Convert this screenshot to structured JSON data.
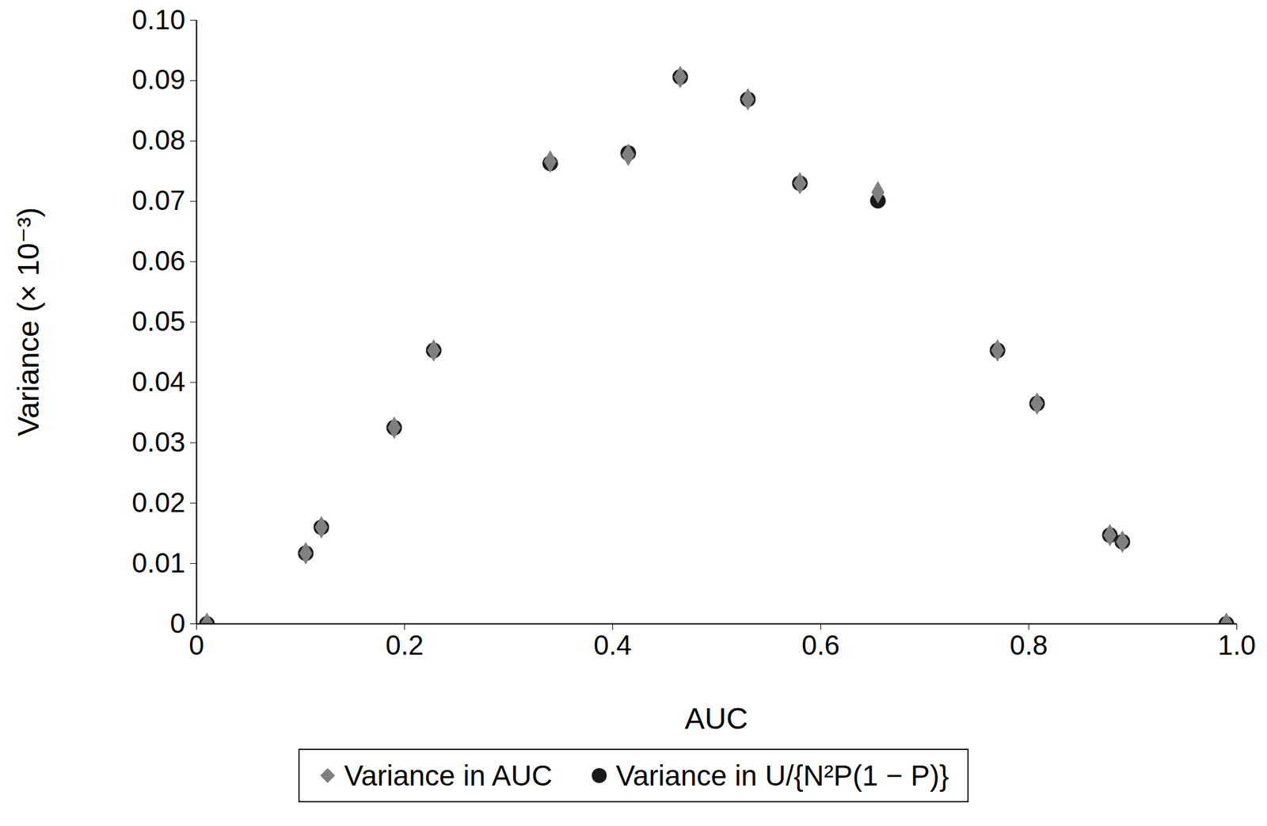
{
  "chart_data": {
    "type": "scatter",
    "x_label": "AUC",
    "y_label": "Variance (× 10⁻³)",
    "xlim": [
      0,
      1
    ],
    "xticks": [
      0,
      0.2,
      0.4,
      0.6,
      0.8,
      {
        "value": 1,
        "label": "1.0"
      }
    ],
    "ylim": [
      0,
      0.1
    ],
    "yticks": [
      0,
      0.01,
      0.02,
      0.03,
      0.04,
      0.05,
      0.06,
      0.07,
      0.08,
      0.09,
      {
        "value": 0.1,
        "label": "0.10"
      }
    ],
    "grid": false,
    "legend": "bottom",
    "series": [
      {
        "name": "Variance in U/{N²P(1 − P)}",
        "color": "#1a1a1a",
        "marker": "circle",
        "x": [
          0.01,
          0.105,
          0.12,
          0.19,
          0.228,
          0.34,
          0.415,
          0.465,
          0.53,
          0.58,
          0.655,
          0.77,
          0.808,
          0.878,
          0.89,
          0.99
        ],
        "values": [
          0,
          0.0117,
          0.016,
          0.0325,
          0.0453,
          0.0763,
          0.078,
          0.0906,
          0.0869,
          0.073,
          0.0701,
          0.0453,
          0.0365,
          0.0147,
          0.0136,
          0
        ]
      },
      {
        "name": "Variance in AUC",
        "color": "#808080",
        "marker": "diamond",
        "x": [
          0.01,
          0.105,
          0.12,
          0.19,
          0.228,
          0.34,
          0.415,
          0.465,
          0.53,
          0.58,
          0.655,
          0.77,
          0.808,
          0.878,
          0.89,
          0.99
        ],
        "values": [
          0,
          0.0117,
          0.016,
          0.0325,
          0.0453,
          0.0766,
          0.0777,
          0.0906,
          0.0869,
          0.073,
          0.0715,
          0.0453,
          0.0365,
          0.0147,
          0.0136,
          0
        ]
      }
    ]
  }
}
